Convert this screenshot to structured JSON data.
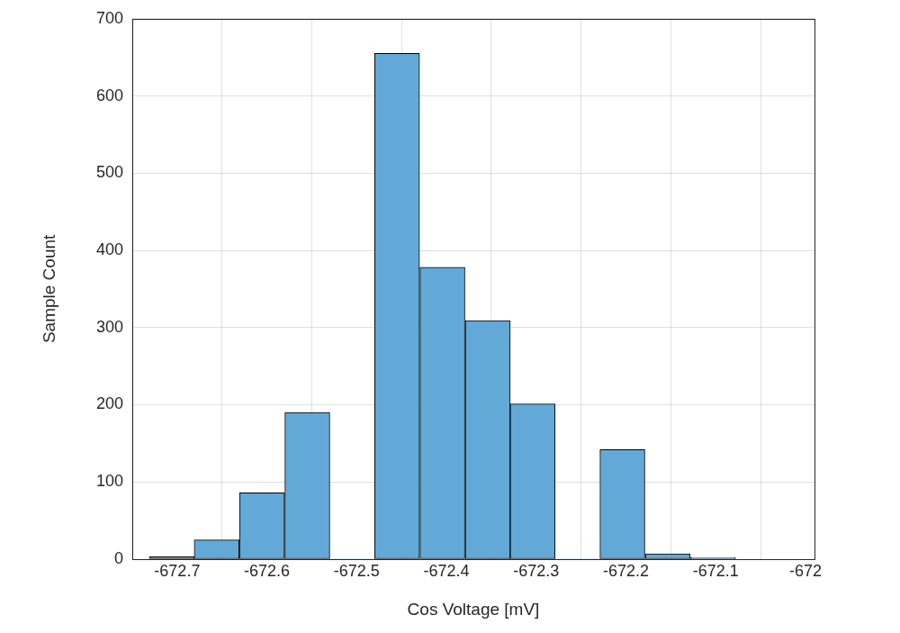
{
  "chart_data": {
    "type": "histogram",
    "x_label": "Cos Voltage [mV]",
    "y_label": "Sample Count",
    "bins": [
      -672.731,
      -672.681,
      -672.631,
      -672.58,
      -672.53,
      -672.48,
      -672.43,
      -672.379,
      -672.329,
      -672.279,
      -672.229,
      -672.179,
      -672.128,
      -672.078
    ],
    "values": [
      3,
      25,
      86,
      190,
      0,
      655,
      378,
      309,
      201,
      0,
      142,
      7,
      2
    ],
    "color": "#63a9d8",
    "xlim": [
      -672.75,
      -671.99
    ],
    "xticks": [
      -672.7,
      -672.6,
      -672.5,
      -672.4,
      -672.3,
      -672.2,
      -672.1,
      -672
    ],
    "ylim": [
      0,
      700
    ],
    "yticks": [
      0,
      100,
      200,
      300,
      400,
      500,
      600,
      700
    ],
    "grid": true
  }
}
